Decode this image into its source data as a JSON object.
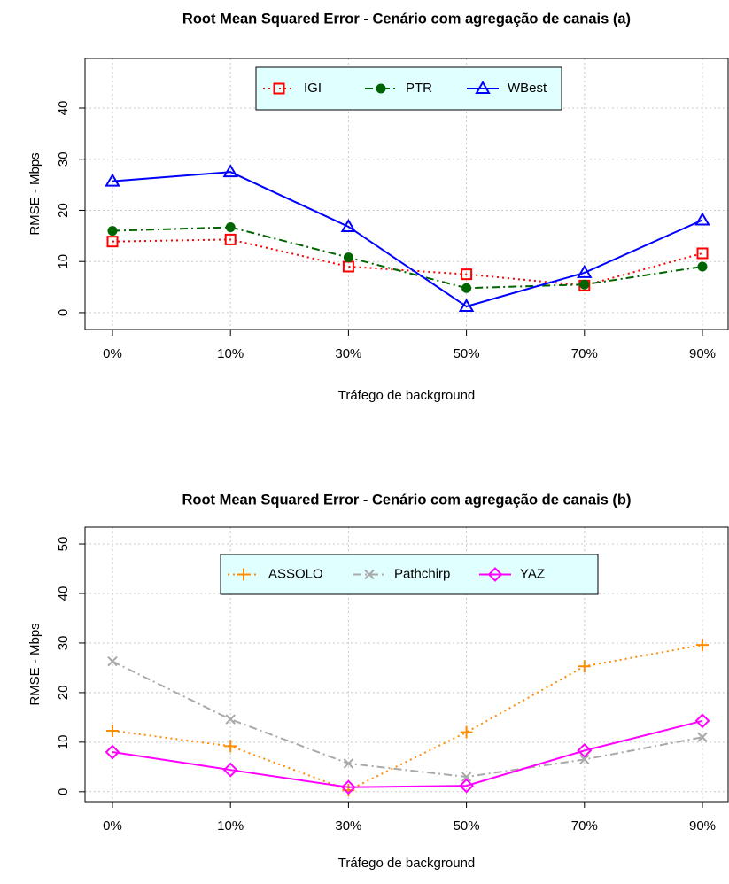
{
  "chart_data": [
    {
      "type": "line",
      "title": "Root Mean Squared Error - Cenário com agregação de canais (a)",
      "x_label": "Tráfego de background",
      "y_label": "RMSE - Mbps",
      "categories": [
        "0%",
        "10%",
        "30%",
        "50%",
        "70%",
        "90%"
      ],
      "ylim": [
        -3.3,
        49.7
      ],
      "yticks": [
        0,
        10,
        20,
        30,
        40
      ],
      "grid": true,
      "legend": "top",
      "series": [
        {
          "name": "IGI",
          "color": "#ff0000",
          "marker": "square",
          "dash": "dotted",
          "values": [
            13.9,
            14.3,
            9.0,
            7.5,
            5.3,
            11.6
          ]
        },
        {
          "name": "PTR",
          "color": "#006400",
          "marker": "circle",
          "dash": "dashdot",
          "values": [
            16.0,
            16.7,
            10.8,
            4.8,
            5.5,
            9.0
          ]
        },
        {
          "name": "WBest",
          "color": "#0000ff",
          "marker": "triangle",
          "dash": "solid",
          "values": [
            25.7,
            27.5,
            16.8,
            1.2,
            7.8,
            18.1
          ]
        }
      ]
    },
    {
      "type": "line",
      "title": "Root Mean Squared Error - Cenário com agregação de canais (b)",
      "x_label": "Tráfego de background",
      "y_label": "RMSE - Mbps",
      "categories": [
        "0%",
        "10%",
        "30%",
        "50%",
        "70%",
        "90%"
      ],
      "ylim": [
        -2.0,
        53.4
      ],
      "yticks": [
        0,
        10,
        20,
        30,
        40,
        50
      ],
      "grid": true,
      "legend": "top",
      "series": [
        {
          "name": "ASSOLO",
          "color": "#ff8c00",
          "marker": "plus",
          "dash": "dotted",
          "values": [
            12.3,
            9.2,
            0.3,
            12.0,
            25.3,
            29.6
          ]
        },
        {
          "name": "Pathchirp",
          "color": "#a9a9a9",
          "marker": "cross",
          "dash": "dashdot",
          "values": [
            26.3,
            14.6,
            5.7,
            3.0,
            6.5,
            11.0
          ]
        },
        {
          "name": "YAZ",
          "color": "#ff00ff",
          "marker": "diamond",
          "dash": "solid",
          "values": [
            8.0,
            4.4,
            0.9,
            1.2,
            8.3,
            14.3
          ]
        }
      ]
    }
  ]
}
